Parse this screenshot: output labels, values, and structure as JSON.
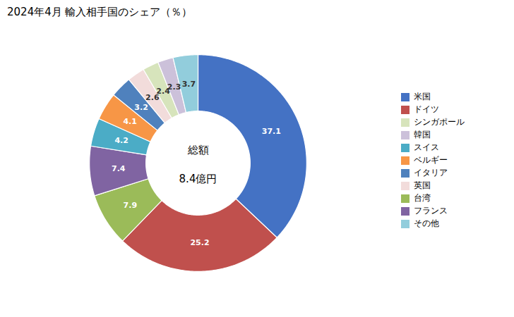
{
  "chart_data": {
    "type": "donut",
    "title": "2024年4月 輸入相手国のシェア（％）",
    "categories": [
      "米国",
      "ドイツ",
      "台湾",
      "フランス",
      "スイス",
      "ベルギー",
      "イタリア",
      "英国",
      "シンガポール",
      "韓国",
      "その他"
    ],
    "values": [
      37.1,
      25.2,
      7.9,
      7.4,
      4.2,
      4.1,
      3.2,
      2.6,
      2.4,
      2.3,
      3.7
    ],
    "colors": [
      "#4472C4",
      "#C0504D",
      "#9BBB59",
      "#8064A2",
      "#4BACC6",
      "#F79646",
      "#4F81BD",
      "#F2DCDB",
      "#D7E4BC",
      "#CCC1DA",
      "#92CDDC"
    ],
    "data_labels": true,
    "annotations": [
      "総額",
      "8.4億円"
    ],
    "legend": "right",
    "legend_order": [
      "米国",
      "ドイツ",
      "シンガポール",
      "韓国",
      "スイス",
      "ベルギー",
      "イタリア",
      "英国",
      "台湾",
      "フランス",
      "その他"
    ]
  }
}
